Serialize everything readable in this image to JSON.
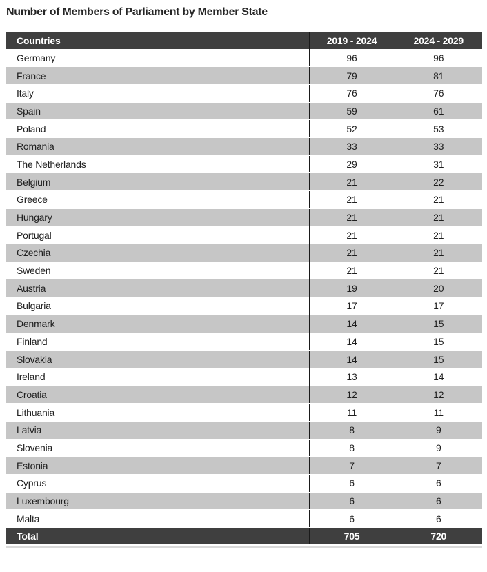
{
  "title": "Number of Members of Parliament by Member State",
  "colors": {
    "header_bg": "#3f3f3f",
    "stripe_bg": "#c6c6c6",
    "divider": "#1a1a1a",
    "header_text": "#ffffff",
    "body_text": "#1f1f1f",
    "bottom_edge": "#d9d9d9"
  },
  "chart_data": {
    "type": "table",
    "title": "Number of Members of Parliament by Member State",
    "columns": [
      "Countries",
      "2019 - 2024",
      "2024 - 2029"
    ],
    "rows": [
      [
        "Germany",
        96,
        96
      ],
      [
        "France",
        79,
        81
      ],
      [
        "Italy",
        76,
        76
      ],
      [
        "Spain",
        59,
        61
      ],
      [
        "Poland",
        52,
        53
      ],
      [
        "Romania",
        33,
        33
      ],
      [
        "The Netherlands",
        29,
        31
      ],
      [
        "Belgium",
        21,
        22
      ],
      [
        "Greece",
        21,
        21
      ],
      [
        "Hungary",
        21,
        21
      ],
      [
        "Portugal",
        21,
        21
      ],
      [
        "Czechia",
        21,
        21
      ],
      [
        "Sweden",
        21,
        21
      ],
      [
        "Austria",
        19,
        20
      ],
      [
        "Bulgaria",
        17,
        17
      ],
      [
        "Denmark",
        14,
        15
      ],
      [
        "Finland",
        14,
        15
      ],
      [
        "Slovakia",
        14,
        15
      ],
      [
        "Ireland",
        13,
        14
      ],
      [
        "Croatia",
        12,
        12
      ],
      [
        "Lithuania",
        11,
        11
      ],
      [
        "Latvia",
        8,
        9
      ],
      [
        "Slovenia",
        8,
        9
      ],
      [
        "Estonia",
        7,
        7
      ],
      [
        "Cyprus",
        6,
        6
      ],
      [
        "Luxembourg",
        6,
        6
      ],
      [
        "Malta",
        6,
        6
      ]
    ],
    "total": [
      "Total",
      705,
      720
    ],
    "layout": {
      "zebra_striping": true,
      "column_dividers": true,
      "header_style": "dark",
      "total_row_style": "dark"
    }
  }
}
